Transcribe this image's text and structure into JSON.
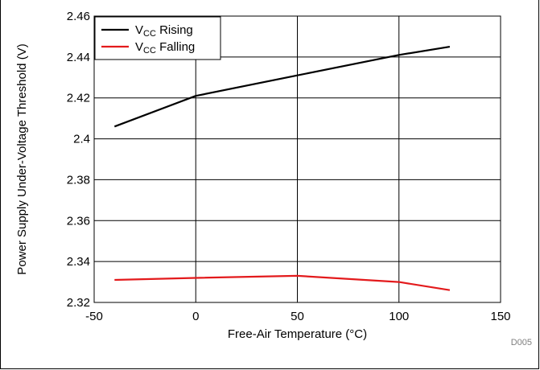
{
  "chart_data": {
    "type": "line",
    "xlabel": "Free-Air Temperature (°C)",
    "ylabel": "Power Supply Under-Voltage Threshold (V)",
    "xlim": [
      -50,
      150
    ],
    "ylim": [
      2.32,
      2.46
    ],
    "xticks": [
      -50,
      0,
      50,
      100,
      150
    ],
    "yticks": [
      2.32,
      2.34,
      2.36,
      2.38,
      2.4,
      2.42,
      2.44,
      2.46
    ],
    "ytick_labels": [
      "2.32",
      "2.34",
      "2.36",
      "2.38",
      "2.4",
      "2.42",
      "2.44",
      "2.46"
    ],
    "grid": true,
    "legend_position": "top-left",
    "series": [
      {
        "name": "VCC Rising",
        "legend": {
          "main": "V",
          "sub": "CC",
          "rest": " Rising"
        },
        "color": "#000000",
        "x": [
          -40,
          0,
          50,
          100,
          125
        ],
        "y": [
          2.406,
          2.421,
          2.431,
          2.441,
          2.445
        ]
      },
      {
        "name": "VCC Falling",
        "legend": {
          "main": "V",
          "sub": "CC",
          "rest": " Falling"
        },
        "color": "#e31a1c",
        "x": [
          -40,
          0,
          50,
          100,
          125
        ],
        "y": [
          2.331,
          2.332,
          2.333,
          2.33,
          2.326
        ]
      }
    ],
    "annotation": "D005"
  }
}
